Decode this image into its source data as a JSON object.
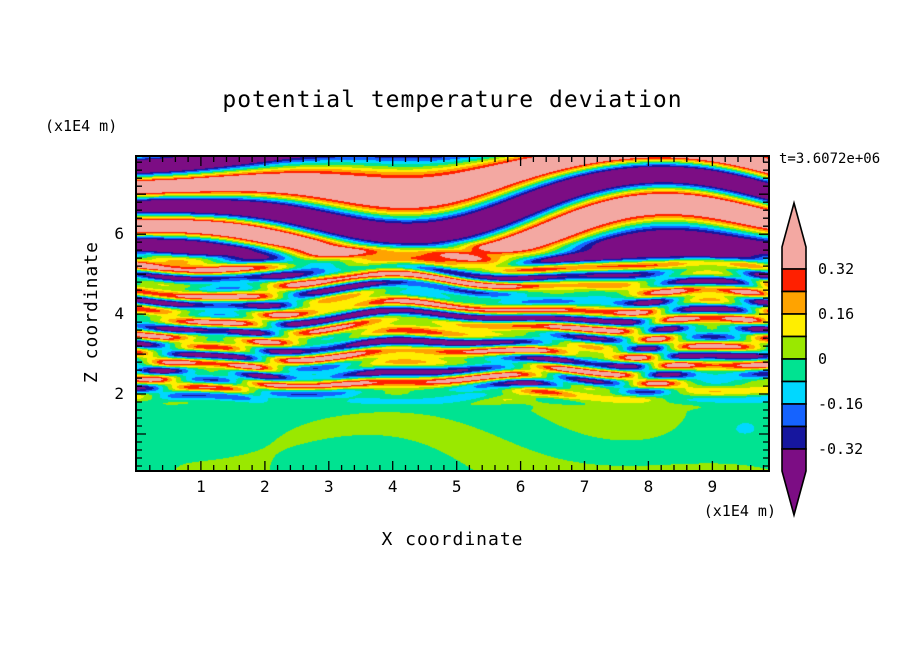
{
  "figure": {
    "background": "#ffffff"
  },
  "chart_data": {
    "type": "heatmap",
    "title": "potential temperature deviation",
    "xlabel": "X coordinate",
    "ylabel": "Z coordinate",
    "x_unit_label": "(x1E4 m)",
    "y_unit_label": "(x1E4 m)",
    "time_annotation": "t=3.6072e+06",
    "xlim": [
      0,
      9.87
    ],
    "ylim": [
      0.1,
      7.93
    ],
    "xticks": [
      1,
      2,
      3,
      4,
      5,
      6,
      7,
      8,
      9
    ],
    "yticks": [
      2,
      4,
      6
    ],
    "minor_tick_interval": 0.2,
    "colorbar": {
      "tick_labels": [
        "0.32",
        "0.16",
        "0",
        "-0.16",
        "-0.32"
      ],
      "levels": [
        -0.32,
        -0.24,
        -0.16,
        -0.08,
        0,
        0.08,
        0.16,
        0.24,
        0.32
      ],
      "colors_low_to_high": [
        "#7c0d84",
        "#16169e",
        "#1563ff",
        "#00d8ff",
        "#00e391",
        "#9ae800",
        "#ffee00",
        "#ffa300",
        "#ff2000",
        "#f3a8a2"
      ]
    },
    "field_regions": [
      {
        "name": "near-zero convective layer (greens)",
        "z_range": [
          0.1,
          2.0
        ],
        "amplitude": 0.07
      },
      {
        "name": "fine striped turbulent layer (full colour range)",
        "z_range": [
          2.0,
          5.4
        ],
        "amplitude": 0.33
      },
      {
        "name": "large-amplitude banded layer (pink/purple)",
        "z_range": [
          5.4,
          7.93
        ],
        "amplitude": 0.55
      }
    ],
    "description": "Filled-contour field of potential temperature deviation: near-zero green/chartreuse convective blobs below z~2, fine multicolour horizontal stripes spanning the full range for 2<z<5.4, and thick saturated salmon-pink/purple alternating bands aloft."
  }
}
